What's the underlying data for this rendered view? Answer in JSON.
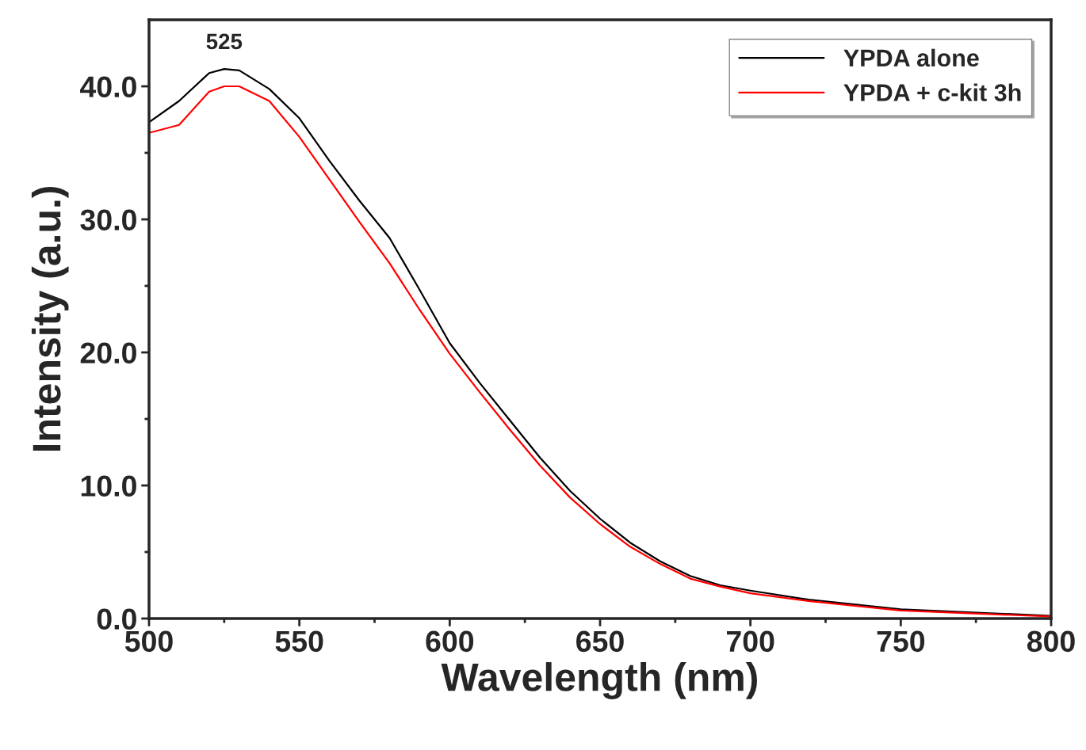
{
  "chart_data": {
    "type": "line",
    "xlabel": "Wavelength (nm)",
    "ylabel": "Intensity (a.u.)",
    "xlim": [
      500,
      800
    ],
    "ylim": [
      0,
      45
    ],
    "xticks": [
      500,
      {
        "value": 525,
        "label": null
      },
      550,
      {
        "value": 575,
        "label": null
      },
      600,
      {
        "value": 625,
        "label": null
      },
      650,
      {
        "value": 675,
        "label": null
      },
      700,
      {
        "value": 725,
        "label": null
      },
      750,
      {
        "value": 775,
        "label": null
      },
      800
    ],
    "yticks": [
      {
        "value": 0,
        "label": "0.0"
      },
      {
        "value": 5,
        "label": null
      },
      {
        "value": 10,
        "label": "10.0"
      },
      {
        "value": 15,
        "label": null
      },
      {
        "value": 20,
        "label": "20.0"
      },
      {
        "value": 25,
        "label": null
      },
      {
        "value": 30,
        "label": "30.0"
      },
      {
        "value": 35,
        "label": null
      },
      {
        "value": 40,
        "label": "40.0"
      }
    ],
    "grid": false,
    "legend": "top right",
    "annotations": [
      {
        "text": "525",
        "x": 525,
        "y": 41.3
      }
    ],
    "x": [
      500,
      510,
      520,
      525,
      530,
      540,
      550,
      560,
      570,
      580,
      590,
      600,
      610,
      620,
      630,
      640,
      650,
      660,
      670,
      680,
      690,
      700,
      720,
      750,
      800
    ],
    "series": [
      {
        "name": "YPDA alone",
        "color": "#000000",
        "values": [
          37.3,
          38.9,
          41.0,
          41.3,
          41.2,
          39.8,
          37.6,
          34.4,
          31.4,
          28.6,
          24.7,
          20.7,
          17.7,
          14.9,
          12.1,
          9.6,
          7.5,
          5.7,
          4.3,
          3.2,
          2.5,
          2.1,
          1.4,
          0.7,
          0.2
        ]
      },
      {
        "name": "YPDA + c-kit 3h",
        "color": "#ff0000",
        "values": [
          36.5,
          37.1,
          39.6,
          40.0,
          40.0,
          38.9,
          36.2,
          33.0,
          29.8,
          26.7,
          23.2,
          19.9,
          17.0,
          14.2,
          11.5,
          9.1,
          7.1,
          5.4,
          4.1,
          3.0,
          2.4,
          1.9,
          1.3,
          0.6,
          0.15
        ]
      }
    ]
  }
}
